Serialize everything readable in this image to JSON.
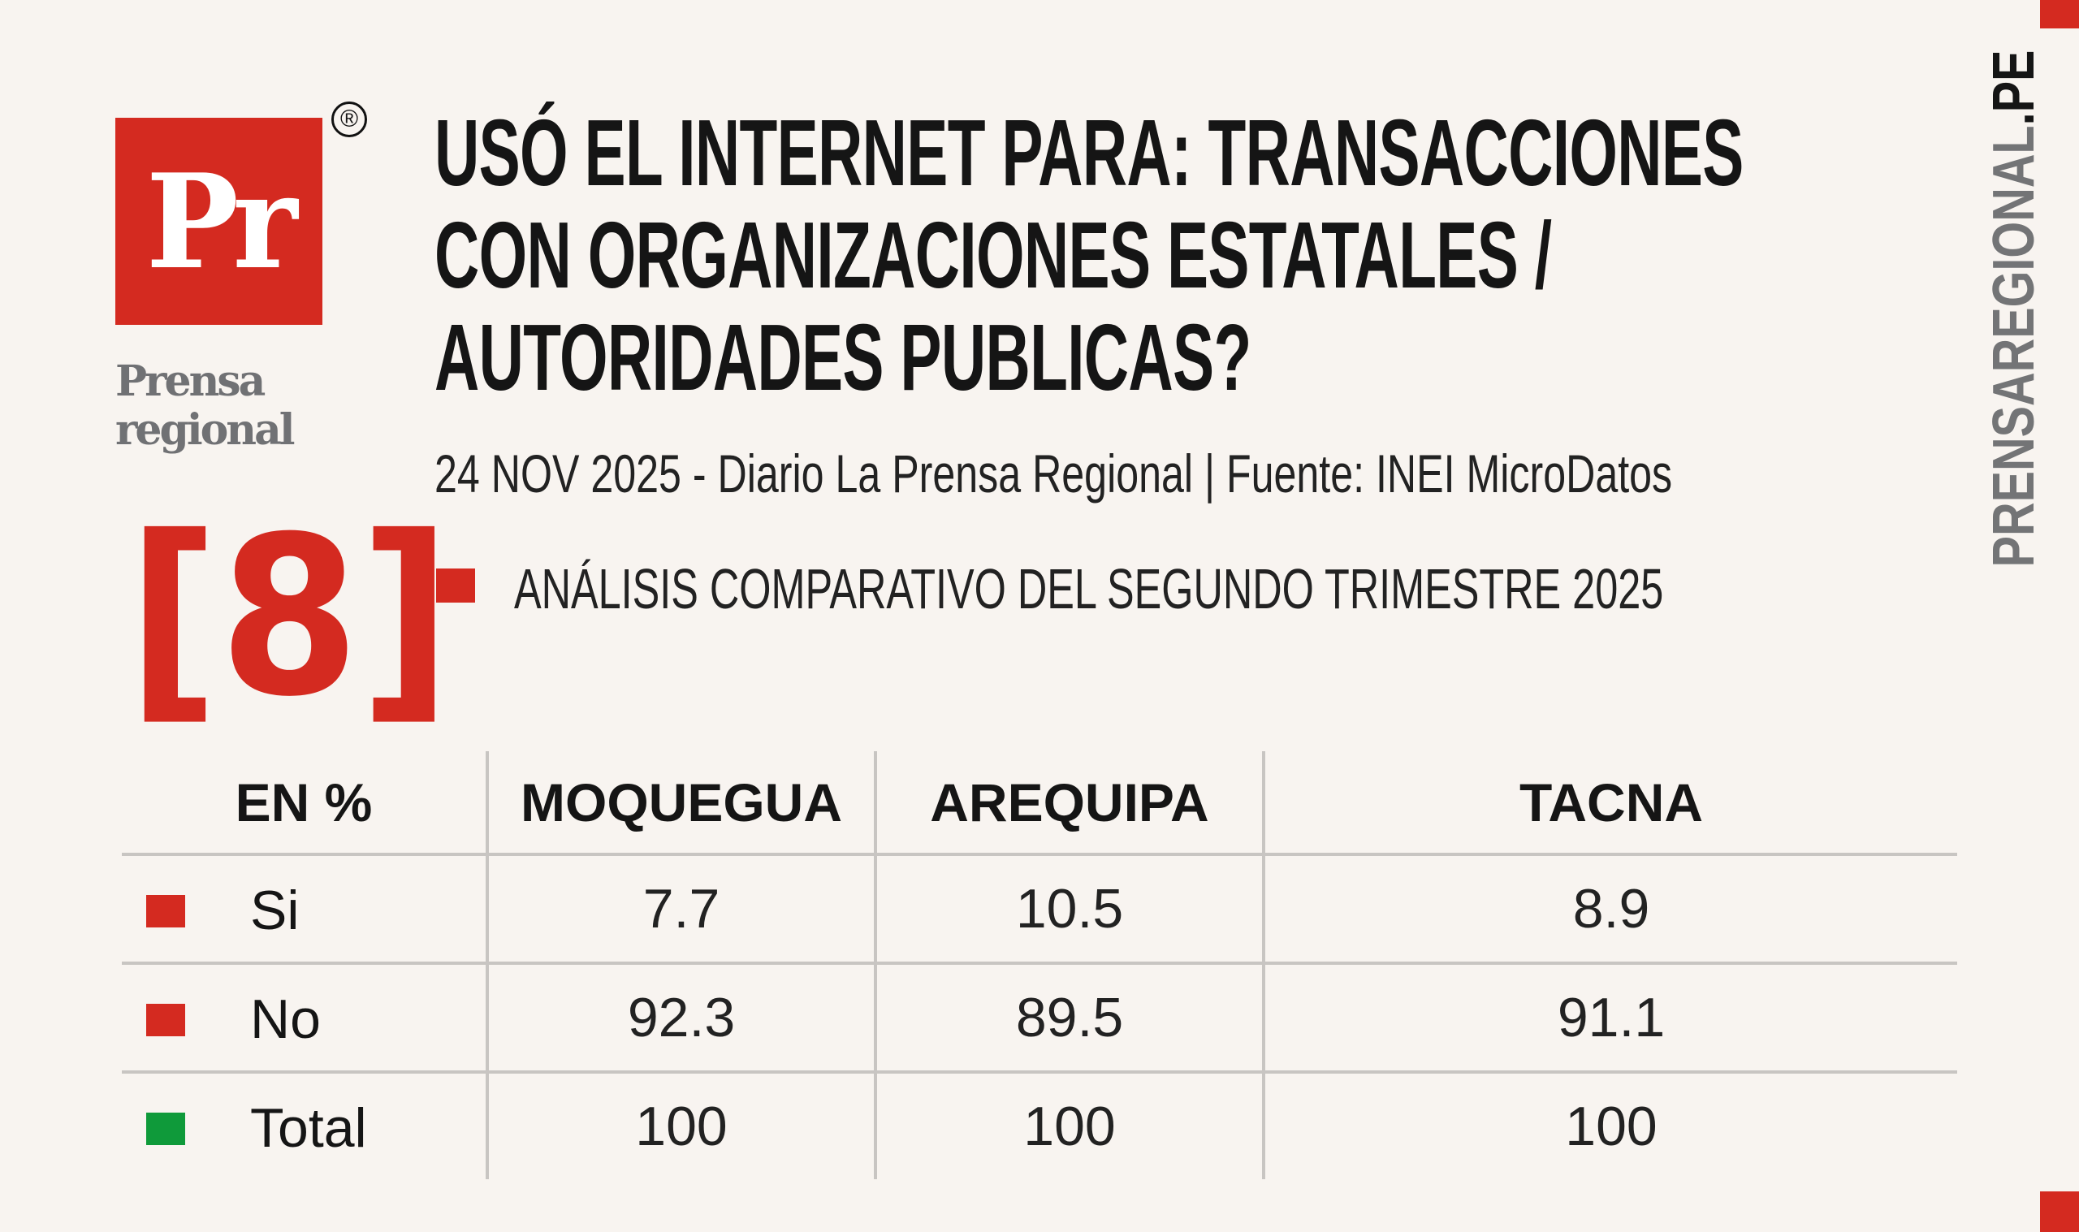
{
  "logo": {
    "mark": "Pr",
    "registered": "®",
    "wordmark_line1": "Prensa",
    "wordmark_line2": "regional",
    "number": "[8]"
  },
  "title_lines": [
    "USÓ EL INTERNET PARA: TRANSACCIONES",
    "CON ORGANIZACIONES ESTATALES /",
    "AUTORIDADES PUBLICAS?"
  ],
  "subtitle": "24 NOV 2025 - Diario La Prensa Regional | Fuente: INEI MicroDatos",
  "section": "ANÁLISIS COMPARATIVO DEL SEGUNDO TRIMESTRE 2025",
  "side_text": {
    "main": "PRENSAREGIONAL",
    "suffix": ".PE"
  },
  "colors": {
    "red": "#d42a20",
    "green": "#0f9a3a",
    "gray": "#737476"
  },
  "table": {
    "headers": [
      "EN %",
      "MOQUEGUA",
      "AREQUIPA",
      "TACNA"
    ],
    "rows": [
      {
        "label": "Si",
        "marker": "red",
        "values": [
          "7.7",
          "10.5",
          "8.9"
        ]
      },
      {
        "label": "No",
        "marker": "red",
        "values": [
          "92.3",
          "89.5",
          "91.1"
        ]
      },
      {
        "label": "Total",
        "marker": "green",
        "values": [
          "100",
          "100",
          "100"
        ]
      }
    ]
  }
}
